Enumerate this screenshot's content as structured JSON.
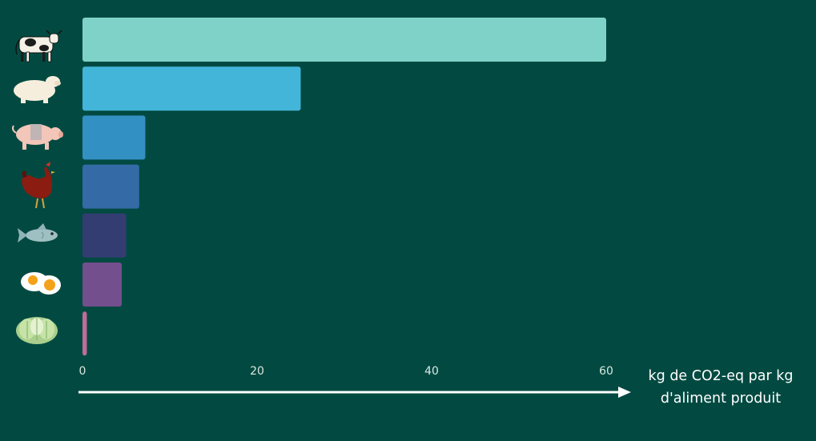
{
  "colors": {
    "background": "#024a41",
    "axis": "#ffffff",
    "tick_text": "#d9e7e2"
  },
  "chart_data": {
    "type": "bar",
    "orientation": "horizontal",
    "categories": [
      "cow-icon",
      "sheep-icon",
      "pig-icon",
      "chicken-icon",
      "fish-icon",
      "egg-icon",
      "cabbage-icon"
    ],
    "values": [
      60,
      25,
      7.2,
      6.5,
      5,
      4.5,
      0.5
    ],
    "bar_colors": [
      "#7fd2c7",
      "#43b5d8",
      "#3390c2",
      "#346aa5",
      "#343d72",
      "#744f8d",
      "#c06c96"
    ],
    "xlim": [
      0,
      60
    ],
    "xticks": [
      0,
      20,
      40,
      60
    ],
    "xlabel_line1": "kg de CO2-eq par kg",
    "xlabel_line2": "d'aliment produit",
    "grid": false,
    "legend": "none"
  }
}
